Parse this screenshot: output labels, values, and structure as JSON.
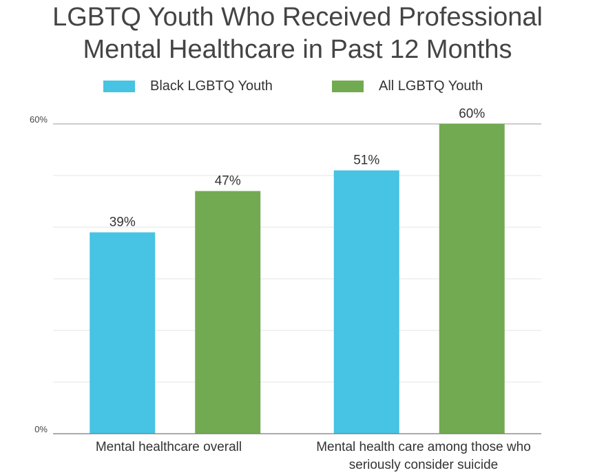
{
  "chart_data": {
    "type": "bar",
    "title_lines": [
      "LGBTQ Youth Who Received Professional",
      "Mental Healthcare in Past 12 Months"
    ],
    "categories": [
      [
        "Mental healthcare overall"
      ],
      [
        "Mental health care among those who",
        "seriously consider suicide"
      ]
    ],
    "series": [
      {
        "name": "Black LGBTQ Youth",
        "color": "#47c3e3",
        "values": [
          39,
          51
        ],
        "labels": [
          "39%",
          "51%"
        ]
      },
      {
        "name": "All LGBTQ Youth",
        "color": "#72aa52",
        "values": [
          47,
          60
        ],
        "labels": [
          "47%",
          "60%"
        ]
      }
    ],
    "ylim": [
      0,
      60
    ],
    "yticks": [
      {
        "value": 0,
        "label": "0%"
      },
      {
        "value": 60,
        "label": "60%"
      }
    ],
    "grid": true,
    "legend": "top"
  }
}
